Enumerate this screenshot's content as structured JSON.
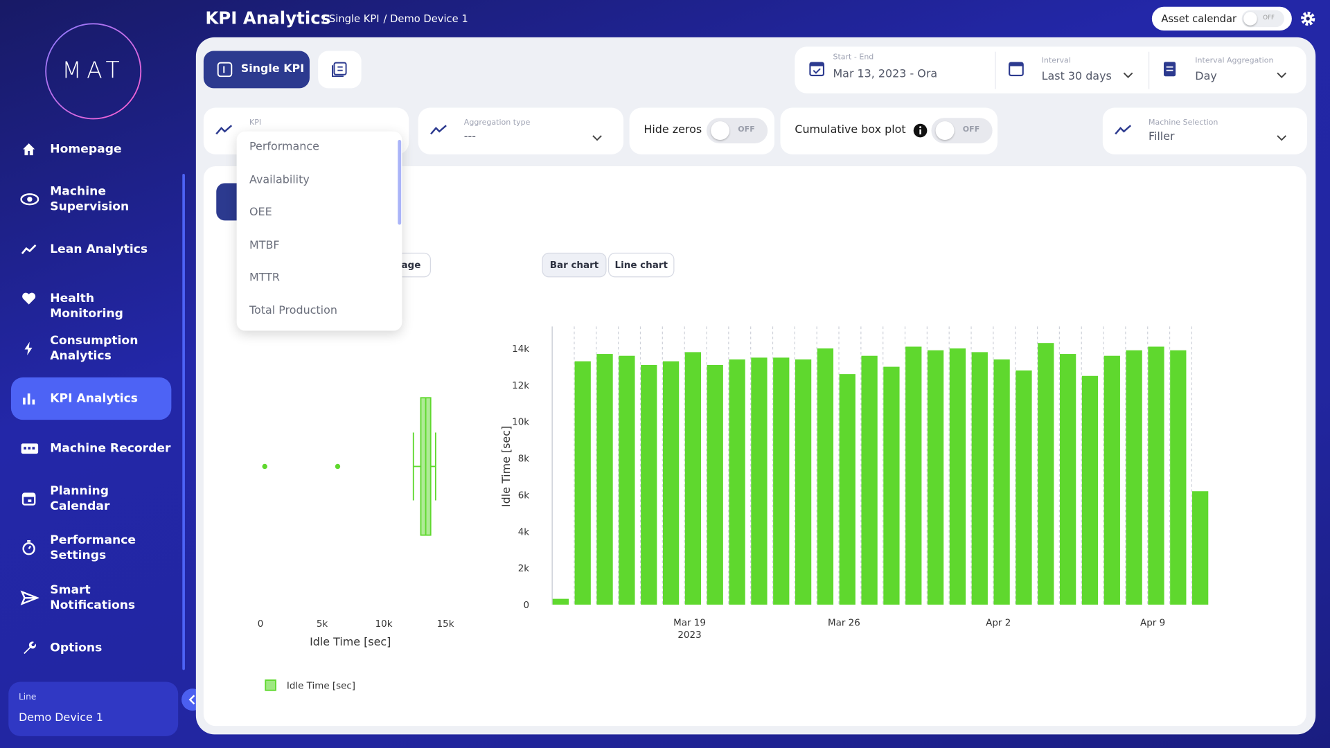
{
  "header": {
    "title": "KPI Analytics",
    "breadcrumbs": [
      "/ Single KPI",
      "/ Demo Device 1"
    ],
    "asset_calendar": "Asset calendar",
    "asset_toggle": "OFF"
  },
  "sidebar": {
    "logo": "MAT",
    "items": [
      "Homepage",
      "Machine Supervision",
      "Lean Analytics",
      "Health Monitoring",
      "Consumption Analytics",
      "KPI Analytics",
      "Machine Recorder",
      "Planning Calendar",
      "Performance Settings",
      "Smart Notifications",
      "Options"
    ],
    "line_label": "Line",
    "line_value": "Demo Device 1"
  },
  "tabs": {
    "single": "Single KPI"
  },
  "filters": {
    "start_end_label": "Start - End",
    "start_end_value": "Mar 13, 2023 - Ora",
    "interval_label": "Interval",
    "interval_value": "Last 30 days",
    "aggregation_label": "Interval Aggregation",
    "aggregation_value": "Day"
  },
  "controls": {
    "kpi_label": "KPI",
    "aggregation_label": "Aggregation type",
    "aggregation_value": "---",
    "hide_zeros": "Hide zeros",
    "hide_zeros_toggle": "OFF",
    "cumulative": "Cumulative box plot",
    "cumulative_toggle": "OFF",
    "machine_label": "Machine Selection",
    "machine_value": "Filler"
  },
  "dropdown": {
    "options": [
      "Performance",
      "Availability",
      "OEE",
      "MTBF",
      "MTTR",
      "Total Production"
    ]
  },
  "chart_tabs": {
    "partial": "age",
    "bar": "Bar chart",
    "line": "Line chart"
  },
  "chart_data": [
    {
      "type": "box",
      "xlabel": "Idle Time [sec]",
      "xlim": [
        -1000,
        16500
      ],
      "xticks": [
        0,
        {
          "value": 5000,
          "label": "5k"
        },
        {
          "value": 10000,
          "label": "10k"
        },
        {
          "value": 15000,
          "label": "15k"
        }
      ],
      "series": [
        {
          "name": "Idle Time [sec]",
          "color": "#5fd82e",
          "stats": {
            "min": 12400,
            "q1": 13000,
            "median": 13400,
            "q3": 13800,
            "max": 14200
          },
          "outliers": [
            350,
            6260
          ]
        }
      ]
    },
    {
      "type": "bar",
      "ylabel": "Idle Time [sec]",
      "x": [
        "2023-03-13",
        "2023-03-14",
        "2023-03-15",
        "2023-03-16",
        "2023-03-17",
        "2023-03-18",
        "2023-03-19",
        "2023-03-20",
        "2023-03-21",
        "2023-03-22",
        "2023-03-23",
        "2023-03-24",
        "2023-03-25",
        "2023-03-26",
        "2023-03-27",
        "2023-03-28",
        "2023-03-29",
        "2023-03-30",
        "2023-03-31",
        "2023-04-01",
        "2023-04-02",
        "2023-04-03",
        "2023-04-04",
        "2023-04-05",
        "2023-04-06",
        "2023-04-07",
        "2023-04-08",
        "2023-04-09",
        "2023-04-10",
        "2023-04-11"
      ],
      "xticks": [
        {
          "value": "2023-03-19",
          "label": "Mar 19\n2023"
        },
        {
          "value": "2023-03-26",
          "label": "Mar 26"
        },
        {
          "value": "2023-04-02",
          "label": "Apr 2"
        },
        {
          "value": "2023-04-09",
          "label": "Apr 9"
        }
      ],
      "series": [
        {
          "color": "#5fd82e",
          "values": [
            320,
            13300,
            13700,
            13600,
            13100,
            13300,
            13800,
            13100,
            13400,
            13500,
            13500,
            13400,
            14000,
            12600,
            13600,
            13000,
            14100,
            13900,
            14000,
            13800,
            13400,
            12800,
            14300,
            13700,
            12500,
            13600,
            13900,
            14100,
            13900,
            6200
          ]
        }
      ],
      "ylim": [
        0,
        15200
      ],
      "yticks": [
        0,
        {
          "value": 2000,
          "label": "2k"
        },
        {
          "value": 4000,
          "label": "4k"
        },
        {
          "value": 6000,
          "label": "6k"
        },
        {
          "value": 8000,
          "label": "8k"
        },
        {
          "value": 10000,
          "label": "10k"
        },
        {
          "value": 12000,
          "label": "12k"
        },
        {
          "value": 14000,
          "label": "14k"
        }
      ]
    }
  ]
}
